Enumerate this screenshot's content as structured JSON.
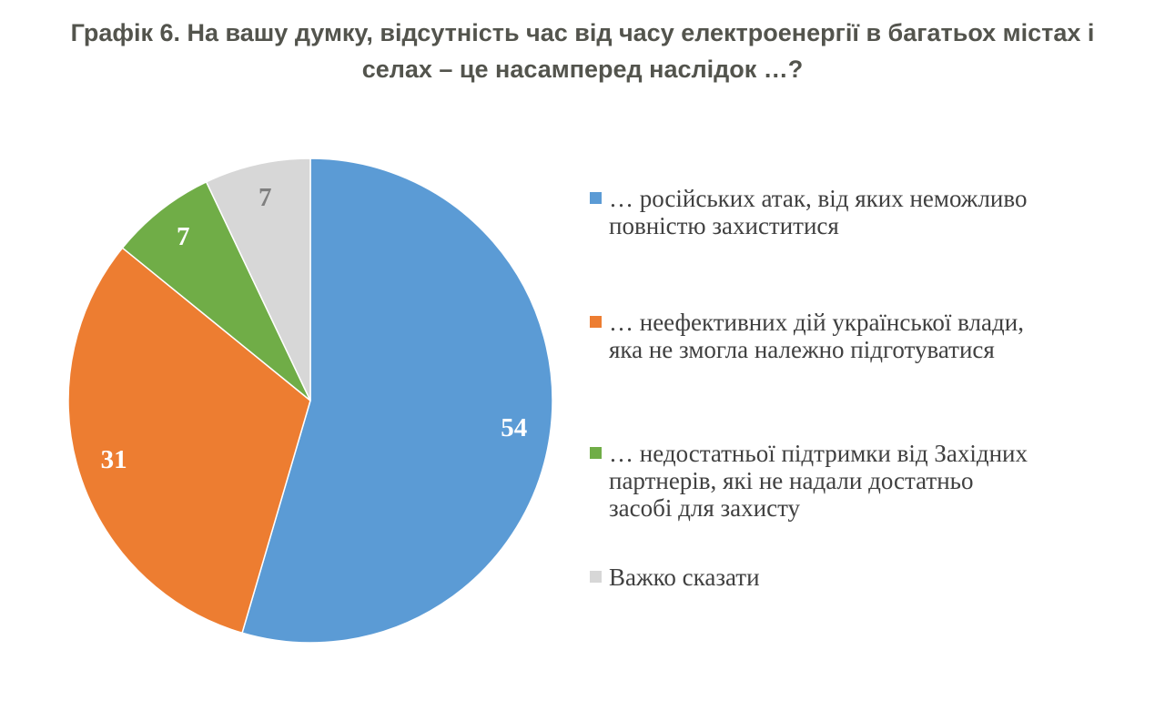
{
  "title": {
    "full_text": "Графік 6. На вашу думку, відсутність час від часу електроенергії в багатьох містах і селах – це насамперед наслідок …?",
    "line1": "Графік 6. На вашу думку, відсутність час від часу електроенергії в багатьох містах і",
    "line2": "селах – це насамперед наслідок …?",
    "color": "#53544d"
  },
  "chart_data": {
    "type": "pie",
    "title": "Графік 6. На вашу думку, відсутність час від часу електроенергії в багатьох містах і селах – це насамперед наслідок …?",
    "start_angle_deg": 0,
    "direction": "clockwise",
    "legend_position": "right",
    "categories": [
      "… російських атак, від яких неможливо повністю захиститися",
      "… неефективних дій української влади, яка не змогла належно підготуватися",
      "… недостатньої підтримки від Західних партнерів, які не надали достатньо засобі для захисту",
      "Важко сказати"
    ],
    "values": [
      54,
      31,
      7,
      7
    ],
    "slices": [
      {
        "label": "… російських атак, від яких неможливо повністю захиститися",
        "value": 54,
        "color": "#5b9bd5",
        "label_color": "#ffffff"
      },
      {
        "label": "… неефективних дій української влади, яка не змогла належно підготуватися",
        "value": 31,
        "color": "#ed7d31",
        "label_color": "#ffffff"
      },
      {
        "label": "… недостатньої підтримки від Західних партнерів, які не надали достатньо засобі для захисту",
        "value": 7,
        "color": "#70ad47",
        "label_color": "#ffffff"
      },
      {
        "label": "Важко сказати",
        "value": 7,
        "color": "#d7d7d7",
        "label_color": "#7f7f7f"
      }
    ]
  },
  "legend": {
    "text_color": "#404040",
    "items": [
      {
        "lines": [
          "… російських атак, від яких неможливо",
          "повністю захиститися"
        ],
        "color": "#5b9bd5"
      },
      {
        "lines": [
          "… неефективних дій української влади,",
          "яка не змогла належно підготуватися"
        ],
        "color": "#ed7d31"
      },
      {
        "lines": [
          "… недостатньої підтримки від Західних",
          "партнерів, які не надали достатньо",
          "засобі для захисту"
        ],
        "color": "#70ad47"
      },
      {
        "lines": [
          "Важко сказати"
        ],
        "color": "#d7d7d7"
      }
    ]
  }
}
